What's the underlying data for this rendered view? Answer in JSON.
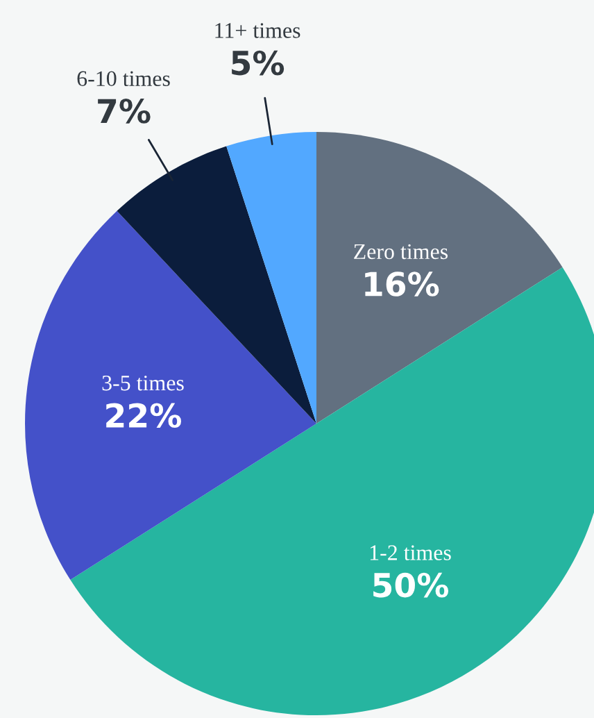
{
  "chart_data": {
    "type": "pie",
    "categories": [
      "Zero times",
      "1-2 times",
      "3-5 times",
      "6-10 times",
      "11+ times"
    ],
    "values": [
      16,
      50,
      22,
      7,
      5
    ],
    "value_labels": [
      "16%",
      "50%",
      "22%",
      "7%",
      "5%"
    ],
    "colors": [
      "#627080",
      "#26b5a0",
      "#4451c9",
      "#0b1d3c",
      "#52a8ff"
    ],
    "legend": false
  }
}
